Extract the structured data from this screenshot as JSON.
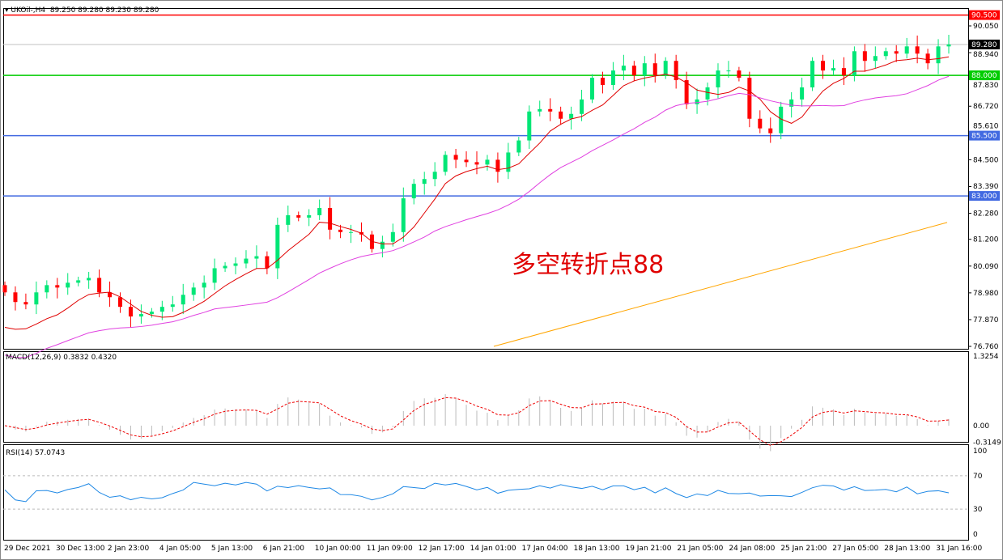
{
  "header": {
    "symbol": "UKOil-,H4",
    "ohlc": "89.250 89.280 89.230 89.280"
  },
  "annotation": "多空转折点88",
  "price_axis": {
    "ticks": [
      "90.050",
      "88.940",
      "87.830",
      "86.720",
      "85.610",
      "84.500",
      "83.390",
      "82.280",
      "81.200",
      "80.090",
      "78.980",
      "77.870",
      "76.760"
    ],
    "min": 76.76,
    "max": 90.05
  },
  "levels": [
    {
      "value": 90.5,
      "label": "90.500",
      "color": "#ff0000"
    },
    {
      "value": 88.0,
      "label": "88.000",
      "color": "#00cc00"
    },
    {
      "value": 85.5,
      "label": "85.500",
      "color": "#4169e1"
    },
    {
      "value": 83.0,
      "label": "83.000",
      "color": "#4169e1"
    }
  ],
  "current_price": {
    "value": 89.28,
    "label": "89.280"
  },
  "time_axis": [
    "29 Dec 2021",
    "30 Dec 13:00",
    "2 Jan 23:00",
    "4 Jan 05:00",
    "5 Jan 13:00",
    "6 Jan 21:00",
    "10 Jan 00:00",
    "11 Jan 09:00",
    "12 Jan 17:00",
    "14 Jan 01:00",
    "17 Jan 04:00",
    "18 Jan 13:00",
    "19 Jan 21:00",
    "21 Jan 05:00",
    "24 Jan 08:00",
    "25 Jan 21:00",
    "27 Jan 05:00",
    "28 Jan 13:00",
    "31 Jan 16:00"
  ],
  "colors": {
    "bull": "#00e676",
    "bear": "#ff0000",
    "ma_fast": "#e00000",
    "ma_mid": "#e040e0",
    "ma_slow": "#ffa500"
  },
  "chart_data": {
    "type": "candlestick",
    "closes": [
      79.0,
      78.6,
      78.5,
      79.0,
      79.3,
      79.2,
      79.4,
      79.5,
      79.6,
      79.0,
      78.8,
      78.4,
      78.0,
      78.1,
      78.2,
      78.4,
      78.5,
      78.9,
      79.2,
      79.4,
      80.0,
      80.1,
      80.2,
      80.4,
      80.5,
      80.0,
      81.8,
      82.2,
      82.1,
      82.2,
      82.5,
      81.6,
      81.5,
      81.5,
      81.4,
      80.8,
      81.1,
      81.5,
      82.9,
      83.5,
      83.7,
      84.0,
      84.7,
      84.5,
      84.4,
      84.3,
      84.5,
      84.0,
      84.8,
      85.3,
      86.5,
      86.6,
      86.5,
      86.2,
      86.4,
      87.0,
      87.9,
      87.6,
      88.2,
      88.4,
      88.0,
      88.5,
      88.0,
      88.6,
      87.8,
      86.8,
      87.0,
      87.5,
      88.2,
      88.2,
      87.9,
      86.2,
      85.8,
      85.6,
      86.7,
      87.0,
      87.5,
      88.6,
      88.2,
      88.3,
      88.0,
      89.0,
      88.6,
      88.8,
      89.0,
      88.9,
      89.2,
      88.9,
      88.5,
      89.2,
      89.28
    ],
    "ma_slow": {
      "start": 76.76,
      "end": 81.9
    },
    "macd": {
      "label": "MACD(12,26,9) 0.3832 0.4320",
      "ticks": [
        "1.3254",
        "0.00",
        "-0.3149"
      ],
      "min": -0.3149,
      "max": 1.3254
    },
    "rsi": {
      "label": "RSI(14) 57.0743",
      "ticks": [
        "100",
        "70",
        "30",
        "0"
      ],
      "levels": [
        70,
        30
      ]
    }
  }
}
